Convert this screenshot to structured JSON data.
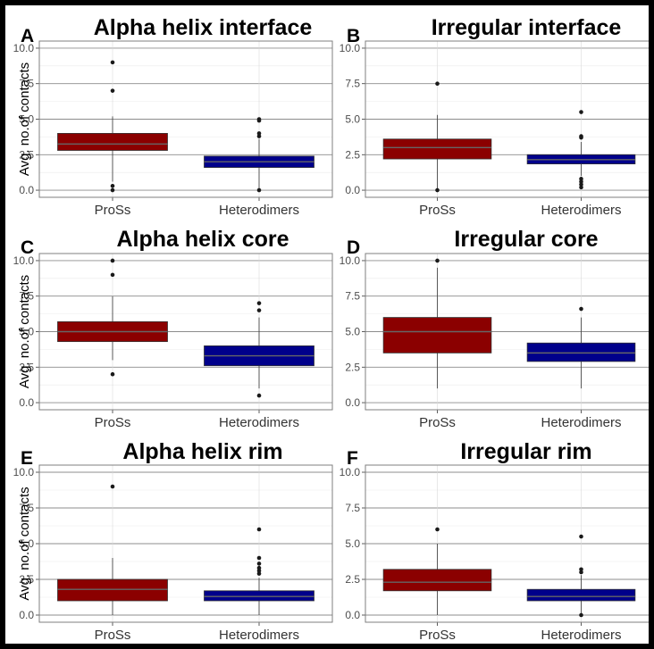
{
  "figure": {
    "ylabel": "Avg. no.of contacts",
    "categories": [
      "ProSs",
      "Heterodimers"
    ],
    "colors": {
      "ProSs": "#8b0000",
      "Heterodimers": "#00008b"
    }
  },
  "chart_data": [
    {
      "type": "box",
      "panel": "A",
      "title": "Alpha helix interface",
      "ylim": [
        0,
        10
      ],
      "yticks": [
        0.0,
        2.5,
        5.0,
        7.5,
        10.0
      ],
      "ylabel": "Avg. no.of contacts",
      "categories": [
        "ProSs",
        "Heterodimers"
      ],
      "boxes": [
        {
          "category": "ProSs",
          "whisker_low": 0.6,
          "q1": 2.8,
          "median": 3.25,
          "q3": 4.0,
          "whisker_high": 5.2,
          "outliers": [
            9.0,
            7.0,
            0.3,
            0.0
          ]
        },
        {
          "category": "Heterodimers",
          "whisker_low": 0.1,
          "q1": 1.6,
          "median": 2.0,
          "q3": 2.4,
          "whisker_high": 3.6,
          "outliers": [
            5.0,
            4.9,
            4.0,
            3.8,
            0.0
          ]
        }
      ]
    },
    {
      "type": "box",
      "panel": "B",
      "title": "Irregular interface",
      "ylim": [
        0,
        10
      ],
      "yticks": [
        0.0,
        2.5,
        5.0,
        7.5,
        10.0
      ],
      "ylabel": "",
      "categories": [
        "ProSs",
        "Heterodimers"
      ],
      "boxes": [
        {
          "category": "ProSs",
          "whisker_low": 0.1,
          "q1": 2.2,
          "median": 3.0,
          "q3": 3.6,
          "whisker_high": 5.3,
          "outliers": [
            7.5,
            0.0
          ]
        },
        {
          "category": "Heterodimers",
          "whisker_low": 1.0,
          "q1": 1.85,
          "median": 2.15,
          "q3": 2.5,
          "whisker_high": 3.4,
          "outliers": [
            5.5,
            3.8,
            3.7,
            0.8,
            0.6,
            0.4,
            0.2
          ]
        }
      ]
    },
    {
      "type": "box",
      "panel": "C",
      "title": "Alpha helix core",
      "ylim": [
        0,
        10
      ],
      "yticks": [
        0.0,
        2.5,
        5.0,
        7.5,
        10.0
      ],
      "ylabel": "Avg. no.of contacts",
      "categories": [
        "ProSs",
        "Heterodimers"
      ],
      "boxes": [
        {
          "category": "ProSs",
          "whisker_low": 3.0,
          "q1": 4.3,
          "median": 5.0,
          "q3": 5.7,
          "whisker_high": 7.5,
          "outliers": [
            10.0,
            9.0,
            2.0
          ]
        },
        {
          "category": "Heterodimers",
          "whisker_low": 1.0,
          "q1": 2.6,
          "median": 3.3,
          "q3": 4.0,
          "whisker_high": 6.0,
          "outliers": [
            7.0,
            6.5,
            0.5
          ]
        }
      ]
    },
    {
      "type": "box",
      "panel": "D",
      "title": "Irregular core",
      "ylim": [
        0,
        10
      ],
      "yticks": [
        0.0,
        2.5,
        5.0,
        7.5,
        10.0
      ],
      "ylabel": "",
      "categories": [
        "ProSs",
        "Heterodimers"
      ],
      "boxes": [
        {
          "category": "ProSs",
          "whisker_low": 1.0,
          "q1": 3.5,
          "median": 5.0,
          "q3": 6.0,
          "whisker_high": 9.5,
          "outliers": [
            10.0
          ]
        },
        {
          "category": "Heterodimers",
          "whisker_low": 1.0,
          "q1": 2.9,
          "median": 3.5,
          "q3": 4.2,
          "whisker_high": 6.0,
          "outliers": [
            6.6
          ]
        }
      ]
    },
    {
      "type": "box",
      "panel": "E",
      "title": "Alpha helix rim",
      "ylim": [
        0,
        10
      ],
      "yticks": [
        0.0,
        2.5,
        5.0,
        7.5,
        10.0
      ],
      "ylabel": "Avg. no.of contacts",
      "categories": [
        "ProSs",
        "Heterodimers"
      ],
      "boxes": [
        {
          "category": "ProSs",
          "whisker_low": 0.0,
          "q1": 1.0,
          "median": 1.8,
          "q3": 2.5,
          "whisker_high": 4.0,
          "outliers": [
            9.0
          ]
        },
        {
          "category": "Heterodimers",
          "whisker_low": 0.0,
          "q1": 1.0,
          "median": 1.3,
          "q3": 1.7,
          "whisker_high": 2.6,
          "outliers": [
            6.0,
            4.0,
            3.6,
            3.3,
            3.1,
            2.9
          ]
        }
      ]
    },
    {
      "type": "box",
      "panel": "F",
      "title": "Irregular rim",
      "ylim": [
        0,
        10
      ],
      "yticks": [
        0.0,
        2.5,
        5.0,
        7.5,
        10.0
      ],
      "ylabel": "",
      "categories": [
        "ProSs",
        "Heterodimers"
      ],
      "boxes": [
        {
          "category": "ProSs",
          "whisker_low": 0.0,
          "q1": 1.7,
          "median": 2.3,
          "q3": 3.2,
          "whisker_high": 5.0,
          "outliers": [
            6.0
          ]
        },
        {
          "category": "Heterodimers",
          "whisker_low": 0.0,
          "q1": 1.0,
          "median": 1.3,
          "q3": 1.8,
          "whisker_high": 2.8,
          "outliers": [
            5.5,
            3.2,
            3.0,
            0.0
          ]
        }
      ]
    }
  ]
}
